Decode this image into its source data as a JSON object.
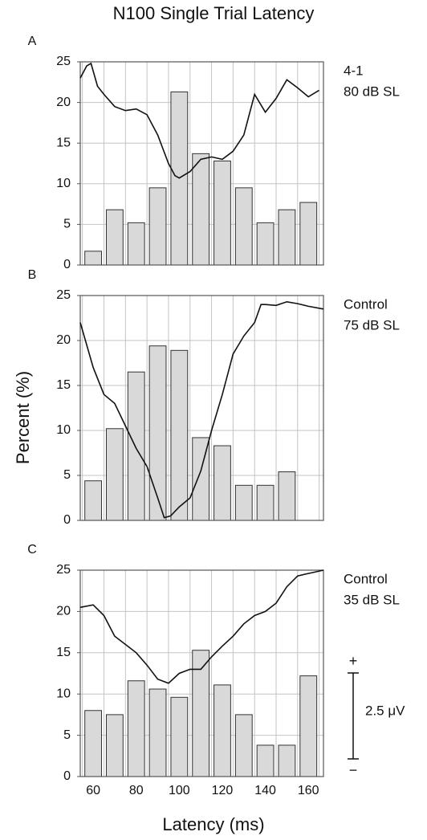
{
  "title": "N100 Single Trial Latency",
  "y_label": "Percent (%)",
  "x_label": "Latency (ms)",
  "scale_bar": {
    "plus": "+",
    "minus": "−",
    "label": "2.5 μV"
  },
  "chart_data": [
    {
      "type": "histogram",
      "panel": "A",
      "labels": [
        "4-1",
        "80 dB SL"
      ],
      "bins": [
        55,
        65,
        75,
        85,
        95,
        105,
        115,
        125,
        135,
        145,
        155,
        165
      ],
      "values": [
        1.7,
        6.8,
        5.2,
        9.5,
        21.3,
        13.7,
        12.8,
        9.5,
        5.2,
        6.8,
        7.7
      ],
      "color": "#d9d9d9",
      "xlim": [
        54,
        167
      ],
      "ylim": [
        0,
        25
      ],
      "yticks": [
        0,
        5,
        10,
        15,
        20,
        25
      ],
      "grid": true,
      "trace": {
        "color": "#111111",
        "x": [
          54,
          57,
          59,
          62,
          65,
          70,
          75,
          80,
          85,
          90,
          95,
          98,
          100,
          105,
          110,
          115,
          120,
          125,
          130,
          135,
          140,
          145,
          150,
          155,
          160,
          165
        ],
        "values": [
          23,
          24.5,
          24.8,
          22,
          21,
          19.5,
          19,
          19.2,
          18.5,
          16,
          12.5,
          11,
          10.7,
          11.5,
          13,
          13.3,
          13,
          14,
          16,
          21,
          18.8,
          20.5,
          22.8,
          21.8,
          20.7,
          21.5
        ]
      }
    },
    {
      "type": "histogram",
      "panel": "B",
      "labels": [
        "Control",
        "75 dB SL"
      ],
      "bins": [
        55,
        65,
        75,
        85,
        95,
        105,
        115,
        125,
        135,
        145,
        155,
        165
      ],
      "values": [
        4.4,
        10.2,
        16.5,
        19.4,
        18.9,
        9.2,
        8.3,
        3.9,
        3.9,
        5.4,
        0
      ],
      "color": "#d9d9d9",
      "xlim": [
        54,
        167
      ],
      "ylim": [
        0,
        25
      ],
      "yticks": [
        0,
        5,
        10,
        15,
        20,
        25
      ],
      "grid": true,
      "trace": {
        "color": "#111111",
        "x": [
          54,
          60,
          65,
          70,
          75,
          80,
          85,
          90,
          93,
          96,
          100,
          105,
          110,
          115,
          120,
          125,
          130,
          135,
          138,
          140,
          145,
          150,
          155,
          160,
          167
        ],
        "values": [
          22,
          17,
          14,
          13,
          10.5,
          8,
          6,
          2.5,
          0.3,
          0.5,
          1.5,
          2.5,
          5.5,
          10,
          14,
          18.5,
          20.5,
          22,
          24,
          24,
          23.9,
          24.3,
          24.1,
          23.8,
          23.5
        ]
      }
    },
    {
      "type": "histogram",
      "panel": "C",
      "labels": [
        "Control",
        "35 dB SL"
      ],
      "bins": [
        55,
        65,
        75,
        85,
        95,
        105,
        115,
        125,
        135,
        145,
        155,
        165
      ],
      "values": [
        8.0,
        7.5,
        11.6,
        10.6,
        9.6,
        15.3,
        11.1,
        7.5,
        3.8,
        3.8,
        12.2
      ],
      "color": "#d9d9d9",
      "xlim": [
        54,
        167
      ],
      "ylim": [
        0,
        25
      ],
      "yticks": [
        0,
        5,
        10,
        15,
        20,
        25
      ],
      "xticks": [
        60,
        80,
        100,
        120,
        140,
        160
      ],
      "grid": true,
      "trace": {
        "color": "#111111",
        "x": [
          54,
          60,
          65,
          70,
          75,
          80,
          85,
          90,
          95,
          100,
          105,
          110,
          115,
          120,
          125,
          130,
          135,
          140,
          145,
          150,
          155,
          160,
          167
        ],
        "values": [
          20.5,
          20.8,
          19.5,
          17,
          16,
          15,
          13.5,
          11.8,
          11.3,
          12.5,
          13,
          13,
          14.5,
          15.8,
          17,
          18.5,
          19.5,
          20,
          21,
          23,
          24.3,
          24.6,
          25
        ]
      }
    }
  ]
}
